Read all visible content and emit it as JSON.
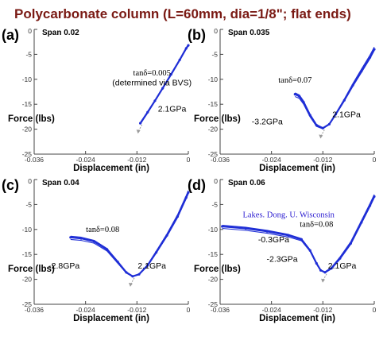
{
  "title": "Polycarbonate column  (L=60mm, dia=1/8\"; flat ends)",
  "colors": {
    "title": "#7a1a14",
    "data": "#1f2ed6",
    "credit": "#2a1bd0",
    "arrow": "#9a9a9a"
  },
  "chart_data": [
    {
      "type": "line",
      "panel_label": "(a)",
      "span_label": "Span 0.02",
      "xlabel": "Displacement (in)",
      "ylabel": "Force (lbs)",
      "xlim": [
        -0.036,
        0
      ],
      "ylim": [
        -25,
        0
      ],
      "x_ticks": [
        "-0.036",
        "-0.024",
        "-0.012",
        "0"
      ],
      "y_ticks": [
        "0",
        "-5",
        "-10",
        "-15",
        "-20",
        "-25"
      ],
      "annotations": [
        {
          "text": "tanδ=0.005",
          "x": -0.0085,
          "y": -9.2,
          "serif": true
        },
        {
          "text": "(determined via BVS)",
          "x": -0.0085,
          "y": -11.2,
          "serif": false
        },
        {
          "text": "2.1GPa",
          "x": -0.0038,
          "y": -16.5,
          "serif": false
        }
      ],
      "series": [
        {
          "values": [
            [
              -0.0112,
              -18.8
            ],
            [
              -0.0095,
              -16.6
            ],
            [
              -0.0078,
              -14.3
            ],
            [
              -0.006,
              -11.8
            ],
            [
              -0.004,
              -9.0
            ],
            [
              -0.002,
              -6.1
            ],
            [
              -0.0005,
              -3.8
            ],
            [
              0,
              -3.2
            ]
          ]
        }
      ],
      "loop_offset": 0.35
    },
    {
      "type": "line",
      "panel_label": "(b)",
      "span_label": "Span 0.035",
      "xlabel": "Displacement (in)",
      "ylabel": "Force (lbs)",
      "xlim": [
        -0.036,
        0
      ],
      "ylim": [
        -25,
        0
      ],
      "x_ticks": [
        "-0.036",
        "-0.024",
        "-0.012",
        "0"
      ],
      "y_ticks": [
        "0",
        "-5",
        "-10",
        "-15",
        "-20",
        "-25"
      ],
      "annotations": [
        {
          "text": "tanδ=0.07",
          "x": -0.0185,
          "y": -10.7,
          "serif": true
        },
        {
          "text": "-3.2GPa",
          "x": -0.025,
          "y": -19.0,
          "serif": false
        },
        {
          "text": "2.1GPa",
          "x": -0.0065,
          "y": -17.6,
          "serif": false
        }
      ],
      "series": [
        {
          "values": [
            [
              -0.0185,
              -13.0
            ],
            [
              -0.0175,
              -13.4
            ],
            [
              -0.0165,
              -14.6
            ],
            [
              -0.015,
              -17.2
            ],
            [
              -0.0135,
              -19.2
            ],
            [
              -0.012,
              -19.8
            ],
            [
              -0.0105,
              -19.0
            ],
            [
              -0.009,
              -17.0
            ],
            [
              -0.007,
              -14.2
            ],
            [
              -0.005,
              -11.2
            ],
            [
              -0.003,
              -8.4
            ],
            [
              -0.001,
              -5.6
            ],
            [
              0,
              -4.0
            ]
          ]
        }
      ],
      "loop_offset": 0.9
    },
    {
      "type": "line",
      "panel_label": "(c)",
      "span_label": "Span 0.04",
      "xlabel": "Displacement (in)",
      "ylabel": "Force (lbs)",
      "xlim": [
        -0.036,
        0
      ],
      "ylim": [
        -25,
        0
      ],
      "x_ticks": [
        "-0.036",
        "-0.024",
        "-0.012",
        "0"
      ],
      "y_ticks": [
        "0",
        "-5",
        "-10",
        "-15",
        "-20",
        "-25"
      ],
      "annotations": [
        {
          "text": "tanδ=0.08",
          "x": -0.02,
          "y": -10.5,
          "serif": true
        },
        {
          "text": "-2.8GPa",
          "x": -0.029,
          "y": -17.8,
          "serif": false
        },
        {
          "text": "2.1GPa",
          "x": -0.0085,
          "y": -17.8,
          "serif": false
        }
      ],
      "series": [
        {
          "values": [
            [
              -0.0275,
              -11.6
            ],
            [
              -0.025,
              -11.8
            ],
            [
              -0.022,
              -12.4
            ],
            [
              -0.019,
              -14.0
            ],
            [
              -0.0165,
              -16.5
            ],
            [
              -0.0145,
              -18.6
            ],
            [
              -0.013,
              -19.4
            ],
            [
              -0.0115,
              -19.0
            ],
            [
              -0.0095,
              -17.2
            ],
            [
              -0.0075,
              -14.6
            ],
            [
              -0.005,
              -11.2
            ],
            [
              -0.0025,
              -7.4
            ],
            [
              -0.0005,
              -3.6
            ],
            [
              0,
              -2.6
            ]
          ]
        }
      ],
      "loop_offset": 0.8
    },
    {
      "type": "line",
      "panel_label": "(d)",
      "span_label": "Span 0.06",
      "xlabel": "Displacement (in)",
      "ylabel": "Force (lbs)",
      "xlim": [
        -0.036,
        0
      ],
      "ylim": [
        -25,
        0
      ],
      "x_ticks": [
        "-0.036",
        "-0.024",
        "-0.012",
        "0"
      ],
      "y_ticks": [
        "0",
        "-5",
        "-10",
        "-15",
        "-20",
        "-25"
      ],
      "annotations": [
        {
          "text": "Lakes. Dong. U. Wisconsin",
          "x": -0.02,
          "y": -7.6,
          "serif": true,
          "credit": true
        },
        {
          "text": "tanδ=0.08",
          "x": -0.0135,
          "y": -9.5,
          "serif": true
        },
        {
          "text": "-0.3GPa",
          "x": -0.0235,
          "y": -12.6,
          "serif": false
        },
        {
          "text": "-2.3GPa",
          "x": -0.0215,
          "y": -16.5,
          "serif": false
        },
        {
          "text": "2.1GPa",
          "x": -0.0075,
          "y": -17.8,
          "serif": false
        }
      ],
      "series": [
        {
          "values": [
            [
              -0.0355,
              -9.4
            ],
            [
              -0.03,
              -9.8
            ],
            [
              -0.025,
              -10.4
            ],
            [
              -0.02,
              -11.2
            ],
            [
              -0.017,
              -12.0
            ],
            [
              -0.015,
              -14.2
            ],
            [
              -0.0135,
              -16.8
            ],
            [
              -0.0125,
              -18.2
            ],
            [
              -0.0115,
              -18.6
            ],
            [
              -0.01,
              -17.8
            ],
            [
              -0.008,
              -15.8
            ],
            [
              -0.0055,
              -12.8
            ],
            [
              -0.003,
              -8.6
            ],
            [
              -0.001,
              -5.2
            ],
            [
              0,
              -3.4
            ]
          ]
        }
      ],
      "loop_offset": 0.8
    }
  ]
}
